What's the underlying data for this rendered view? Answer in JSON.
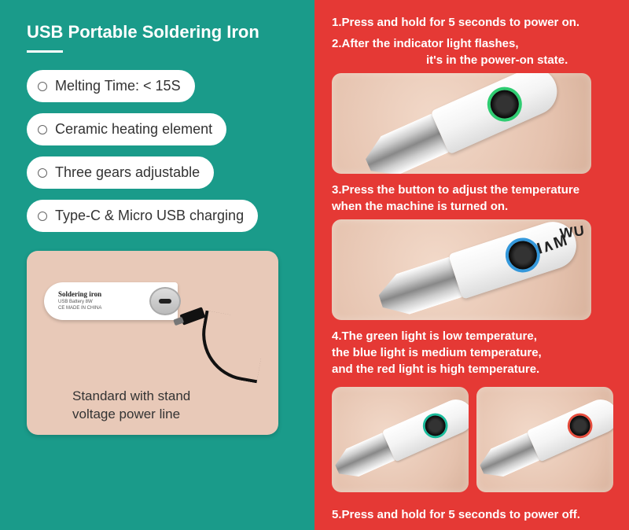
{
  "colors": {
    "left_bg": "#1a9b8a",
    "right_bg": "#e53935",
    "pill_bg": "#ffffff",
    "pill_text": "#333333",
    "photo_bg": "#e8c9b8",
    "ring_green": "#2ecc71",
    "ring_blue": "#3498db",
    "ring_red": "#e74c3c"
  },
  "left": {
    "title": "USB Portable Soldering Iron",
    "features": [
      "Melting Time: < 15S",
      "Ceramic heating element",
      "Three gears adjustable",
      "Type-C & Micro USB charging"
    ],
    "photo_caption_line1": "Standard with stand",
    "photo_caption_line2": "voltage power line",
    "iron_label": "Soldering iron",
    "iron_sublabel": "USB Battery 8W",
    "iron_sublabel2": "CE  MADE IN CHINA"
  },
  "right": {
    "step1": "1.Press and hold for 5 seconds to power on.",
    "step2a": "2.After the indicator light flashes,",
    "step2b": "it's in the power-on state.",
    "step3a": "3.Press the button to adjust the temperature",
    "step3b": "when the machine is turned on.",
    "step4a": "4.The green light is low temperature,",
    "step4b": "the blue light is medium temperature,",
    "step4c": "and the red light is high temperature.",
    "step5": "5.Press and hold for 5 seconds to power off.",
    "brand_partial": "WU"
  }
}
